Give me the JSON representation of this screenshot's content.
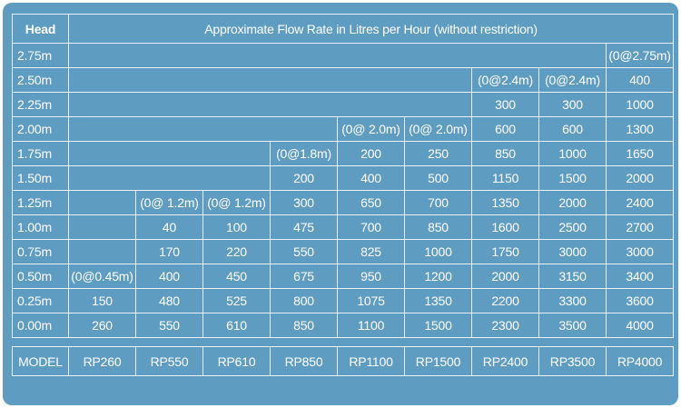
{
  "header": {
    "head_label": "Head",
    "title": "Approximate Flow Rate in Litres per Hour (without restriction)"
  },
  "rows": [
    {
      "head": "2.75m",
      "cells": [
        "",
        "",
        "",
        "",
        "",
        "",
        "",
        "",
        "(0@2.75m)"
      ]
    },
    {
      "head": "2.50m",
      "cells": [
        "",
        "",
        "",
        "",
        "",
        "",
        "(0@2.4m)",
        "(0@2.4m)",
        "400"
      ]
    },
    {
      "head": "2.25m",
      "cells": [
        "",
        "",
        "",
        "",
        "",
        "",
        "300",
        "300",
        "1000"
      ]
    },
    {
      "head": "2.00m",
      "cells": [
        "",
        "",
        "",
        "",
        "(0@ 2.0m)",
        "(0@ 2.0m)",
        "600",
        "600",
        "1300"
      ]
    },
    {
      "head": "1.75m",
      "cells": [
        "",
        "",
        "",
        "(0@1.8m)",
        "200",
        "250",
        "850",
        "1000",
        "1650"
      ]
    },
    {
      "head": "1.50m",
      "cells": [
        "",
        "",
        "",
        "200",
        "400",
        "500",
        "1150",
        "1500",
        "2000"
      ]
    },
    {
      "head": "1.25m",
      "cells": [
        "",
        "(0@ 1.2m)",
        "(0@ 1.2m)",
        "300",
        "650",
        "700",
        "1350",
        "2000",
        "2400"
      ]
    },
    {
      "head": "1.00m",
      "cells": [
        "",
        "40",
        "100",
        "475",
        "700",
        "850",
        "1600",
        "2500",
        "2700"
      ]
    },
    {
      "head": "0.75m",
      "cells": [
        "",
        "170",
        "220",
        "550",
        "825",
        "1000",
        "1750",
        "3000",
        "3000"
      ]
    },
    {
      "head": "0.50m",
      "cells": [
        "(0@0.45m)",
        "400",
        "450",
        "675",
        "950",
        "1200",
        "2000",
        "3150",
        "3400"
      ]
    },
    {
      "head": "0.25m",
      "cells": [
        "150",
        "480",
        "525",
        "800",
        "1075",
        "1350",
        "2200",
        "3300",
        "3600"
      ]
    },
    {
      "head": "0.00m",
      "cells": [
        "260",
        "550",
        "610",
        "850",
        "1100",
        "1500",
        "2300",
        "3500",
        "4000"
      ]
    }
  ],
  "model_label": "MODEL",
  "models": [
    "RP260",
    "RP550",
    "RP610",
    "RP850",
    "RP1100",
    "RP1500",
    "RP2400",
    "RP3500",
    "RP4000"
  ],
  "colors": {
    "background": "#5e9dc1",
    "grid_lines": "#e8f2f8",
    "text": "#ffffff"
  }
}
